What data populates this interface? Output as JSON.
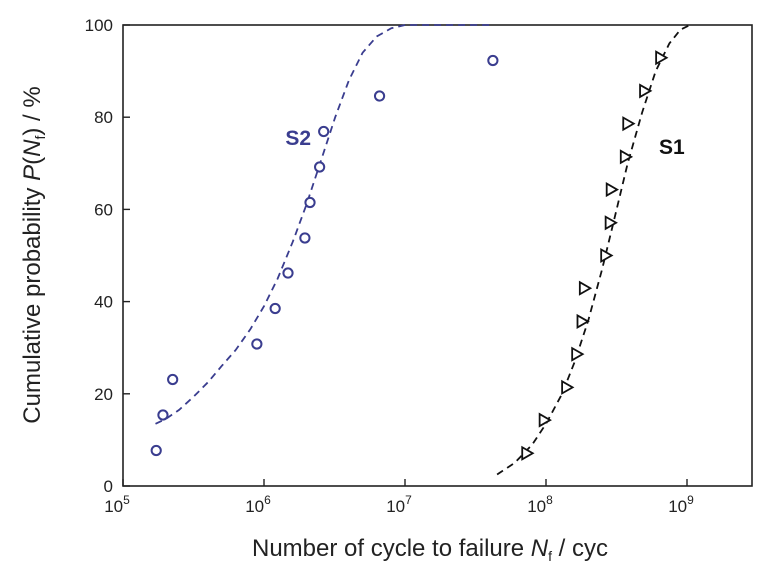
{
  "chart_data": {
    "type": "scatter",
    "xlabel": {
      "main": "Number of cycle to failure ",
      "var": "N",
      "sub": "f",
      "unit": " / cyc"
    },
    "ylabel": {
      "main": "Cumulative probability ",
      "var": "P",
      "open": "(",
      "var2": "N",
      "sub": "f",
      "close": ")",
      "unit": " / %"
    },
    "x_scale": "log",
    "xlim": [
      100000,
      3000000000
    ],
    "ylim": [
      0,
      100
    ],
    "x_ticks": [
      {
        "value": 100000,
        "base": "10",
        "exp": "5"
      },
      {
        "value": 1000000,
        "base": "10",
        "exp": "6"
      },
      {
        "value": 10000000,
        "base": "10",
        "exp": "7"
      },
      {
        "value": 100000000,
        "base": "10",
        "exp": "8"
      },
      {
        "value": 1000000000,
        "base": "10",
        "exp": "9"
      }
    ],
    "y_ticks": [
      "0",
      "20",
      "40",
      "60",
      "80",
      "100"
    ],
    "grid": false,
    "series": [
      {
        "name": "S2",
        "color": "#3a3d8f",
        "marker": "circle",
        "points": [
          {
            "x": 172000,
            "y": 7.7
          },
          {
            "x": 192000,
            "y": 15.4
          },
          {
            "x": 225000,
            "y": 23.1
          },
          {
            "x": 890000,
            "y": 30.8
          },
          {
            "x": 1200000,
            "y": 38.5
          },
          {
            "x": 1480000,
            "y": 46.2
          },
          {
            "x": 1950000,
            "y": 53.8
          },
          {
            "x": 2120000,
            "y": 61.5
          },
          {
            "x": 2480000,
            "y": 69.2
          },
          {
            "x": 2650000,
            "y": 76.9
          },
          {
            "x": 6600000,
            "y": 84.6
          },
          {
            "x": 42000000,
            "y": 92.3
          }
        ],
        "fit": [
          {
            "x": 170000,
            "y": 13.5
          },
          {
            "x": 200000,
            "y": 14.5
          },
          {
            "x": 250000,
            "y": 16.5
          },
          {
            "x": 320000,
            "y": 19.5
          },
          {
            "x": 400000,
            "y": 22.5
          },
          {
            "x": 500000,
            "y": 26
          },
          {
            "x": 630000,
            "y": 29.5
          },
          {
            "x": 800000,
            "y": 34
          },
          {
            "x": 1000000,
            "y": 39
          },
          {
            "x": 1250000,
            "y": 45
          },
          {
            "x": 1600000,
            "y": 53
          },
          {
            "x": 2000000,
            "y": 61
          },
          {
            "x": 2500000,
            "y": 70
          },
          {
            "x": 3200000,
            "y": 80
          },
          {
            "x": 4000000,
            "y": 88
          },
          {
            "x": 5000000,
            "y": 94
          },
          {
            "x": 6300000,
            "y": 97.5
          },
          {
            "x": 8000000,
            "y": 99.3
          },
          {
            "x": 10000000,
            "y": 100
          },
          {
            "x": 20000000,
            "y": 100
          },
          {
            "x": 42000000,
            "y": 100
          }
        ]
      },
      {
        "name": "S1",
        "color": "#111111",
        "marker": "triangle-right",
        "points": [
          {
            "x": 73000000,
            "y": 7.1
          },
          {
            "x": 97000000,
            "y": 14.3
          },
          {
            "x": 140000000,
            "y": 21.4
          },
          {
            "x": 165000000,
            "y": 28.6
          },
          {
            "x": 180000000,
            "y": 35.7
          },
          {
            "x": 187000000,
            "y": 42.9
          },
          {
            "x": 265000000,
            "y": 50.0
          },
          {
            "x": 285000000,
            "y": 57.1
          },
          {
            "x": 290000000,
            "y": 64.3
          },
          {
            "x": 365000000,
            "y": 71.4
          },
          {
            "x": 380000000,
            "y": 78.6
          },
          {
            "x": 500000000,
            "y": 85.7
          },
          {
            "x": 650000000,
            "y": 92.9
          }
        ],
        "fit": [
          {
            "x": 45000000,
            "y": 2.5
          },
          {
            "x": 60000000,
            "y": 5
          },
          {
            "x": 80000000,
            "y": 9
          },
          {
            "x": 100000000,
            "y": 13.5
          },
          {
            "x": 130000000,
            "y": 20
          },
          {
            "x": 160000000,
            "y": 27
          },
          {
            "x": 200000000,
            "y": 36
          },
          {
            "x": 250000000,
            "y": 47
          },
          {
            "x": 300000000,
            "y": 57
          },
          {
            "x": 380000000,
            "y": 70
          },
          {
            "x": 480000000,
            "y": 81
          },
          {
            "x": 600000000,
            "y": 90
          },
          {
            "x": 750000000,
            "y": 96
          },
          {
            "x": 900000000,
            "y": 99
          },
          {
            "x": 1050000000,
            "y": 100
          }
        ]
      }
    ]
  }
}
